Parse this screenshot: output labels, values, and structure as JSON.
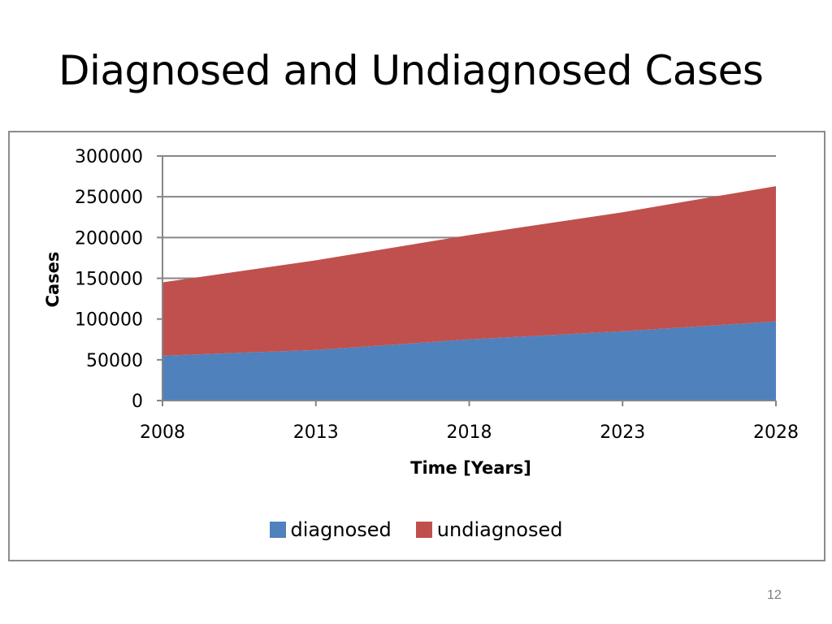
{
  "slide": {
    "title": "Diagnosed and Undiagnosed Cases",
    "page_number": "12"
  },
  "colors": {
    "diagnosed": "#4f81bd",
    "undiagnosed": "#c0504d",
    "grid": "#868686",
    "frame": "#8c8c8c"
  },
  "chart_data": {
    "type": "area",
    "stacked": true,
    "title": "",
    "xlabel": "Time [Years]",
    "ylabel": "Cases",
    "x": [
      2008,
      2013,
      2018,
      2023,
      2028
    ],
    "xticks": [
      "2008",
      "2013",
      "2018",
      "2023",
      "2028"
    ],
    "ylim": [
      0,
      300000
    ],
    "yticks": [
      "0",
      "50000",
      "100000",
      "150000",
      "200000",
      "250000",
      "300000"
    ],
    "grid": true,
    "legend_position": "bottom",
    "series": [
      {
        "name": "diagnosed",
        "values": [
          55000,
          62000,
          75000,
          85000,
          97000
        ]
      },
      {
        "name": "undiagnosed",
        "values": [
          90000,
          110000,
          128000,
          146000,
          166000
        ]
      }
    ]
  }
}
